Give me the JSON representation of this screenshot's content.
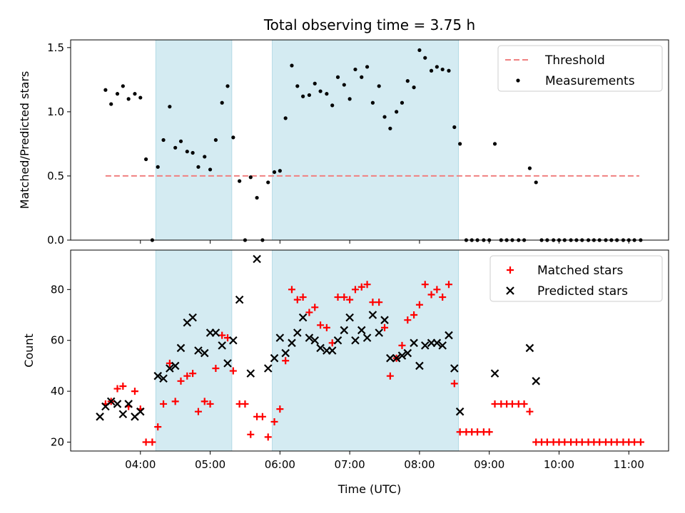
{
  "figure": {
    "title": "Total observing time = 3.75 h",
    "xlabel": "Time (UTC)",
    "x_tick_labels": [
      "04:00",
      "05:00",
      "06:00",
      "07:00",
      "08:00",
      "09:00",
      "10:00",
      "11:00"
    ],
    "x_tick_hours": [
      4,
      5,
      6,
      7,
      8,
      9,
      10,
      11
    ],
    "xlim": [
      3.0,
      11.57
    ],
    "shaded_intervals": [
      [
        4.22,
        5.31
      ],
      [
        5.89,
        8.56
      ]
    ],
    "shade_color": "#d4ebf2"
  },
  "chart_data": [
    {
      "type": "scatter",
      "ylabel": "Matched/Predicted stars",
      "ylim": [
        0,
        1.56
      ],
      "y_ticks": [
        0.0,
        0.5,
        1.0,
        1.5
      ],
      "y_tick_labels": [
        "0.0",
        "0.5",
        "1.0",
        "1.5"
      ],
      "legend": {
        "placement": "top-right",
        "entries": [
          "Threshold",
          "Measurements"
        ]
      },
      "threshold": {
        "name": "Threshold",
        "value": 0.5,
        "x_range": [
          3.5,
          11.15
        ],
        "color": "#f08080",
        "style": "dashed"
      },
      "series": [
        {
          "name": "Measurements",
          "marker": "dot",
          "color": "#000000",
          "x": [
            3.5,
            3.58,
            3.67,
            3.75,
            3.83,
            3.92,
            4.0,
            4.08,
            4.17,
            4.25,
            4.33,
            4.42,
            4.5,
            4.58,
            4.67,
            4.75,
            4.83,
            4.92,
            5.0,
            5.08,
            5.17,
            5.25,
            5.33,
            5.42,
            5.5,
            5.58,
            5.67,
            5.75,
            5.83,
            5.92,
            6.0,
            6.08,
            6.17,
            6.25,
            6.33,
            6.42,
            6.5,
            6.58,
            6.67,
            6.75,
            6.83,
            6.92,
            7.0,
            7.08,
            7.17,
            7.25,
            7.33,
            7.42,
            7.5,
            7.58,
            7.67,
            7.75,
            7.83,
            7.92,
            8.0,
            8.08,
            8.17,
            8.25,
            8.33,
            8.42,
            8.5,
            8.58,
            8.67,
            8.75,
            8.83,
            8.92,
            9.0,
            9.08,
            9.17,
            9.25,
            9.33,
            9.42,
            9.5,
            9.58,
            9.67,
            9.75,
            9.83,
            9.92,
            10.0,
            10.08,
            10.17,
            10.25,
            10.33,
            10.42,
            10.5,
            10.58,
            10.67,
            10.75,
            10.83,
            10.92,
            11.0,
            11.08,
            11.17
          ],
          "y": [
            1.17,
            1.06,
            1.14,
            1.2,
            1.1,
            1.14,
            1.11,
            0.63,
            0.0,
            0.57,
            0.78,
            1.04,
            0.72,
            0.77,
            0.69,
            0.68,
            0.57,
            0.65,
            0.55,
            0.78,
            1.07,
            1.2,
            0.8,
            0.46,
            0.0,
            0.49,
            0.33,
            0.0,
            0.45,
            0.53,
            0.54,
            0.95,
            1.36,
            1.2,
            1.12,
            1.13,
            1.22,
            1.16,
            1.14,
            1.05,
            1.27,
            1.21,
            1.1,
            1.33,
            1.27,
            1.35,
            1.07,
            1.2,
            0.96,
            0.87,
            1.0,
            1.07,
            1.24,
            1.19,
            1.48,
            1.42,
            1.32,
            1.35,
            1.33,
            1.32,
            0.88,
            0.75,
            0.0,
            0.0,
            0.0,
            0.0,
            0.0,
            0.75,
            0.0,
            0.0,
            0.0,
            0.0,
            0.0,
            0.56,
            0.45,
            0.0,
            0.0,
            0.0,
            0.0,
            0.0,
            0.0,
            0.0,
            0.0,
            0.0,
            0.0,
            0.0,
            0.0,
            0.0,
            0.0,
            0.0,
            0.0,
            0.0,
            0.0
          ]
        }
      ]
    },
    {
      "type": "scatter",
      "ylabel": "Count",
      "ylim": [
        16.5,
        95.5
      ],
      "y_ticks": [
        20,
        40,
        60,
        80
      ],
      "y_tick_labels": [
        "20",
        "40",
        "60",
        "80"
      ],
      "legend": {
        "placement": "top-right",
        "entries": [
          "Matched stars",
          "Predicted stars"
        ]
      },
      "series": [
        {
          "name": "Matched stars",
          "marker": "plus",
          "color": "#ff0000",
          "x": [
            3.5,
            3.58,
            3.67,
            3.75,
            3.83,
            3.92,
            4.0,
            4.08,
            4.17,
            4.25,
            4.33,
            4.42,
            4.5,
            4.58,
            4.67,
            4.75,
            4.83,
            4.92,
            5.0,
            5.08,
            5.17,
            5.25,
            5.33,
            5.42,
            5.5,
            5.58,
            5.67,
            5.75,
            5.83,
            5.92,
            6.0,
            6.08,
            6.17,
            6.25,
            6.33,
            6.42,
            6.5,
            6.58,
            6.67,
            6.75,
            6.83,
            6.92,
            7.0,
            7.08,
            7.17,
            7.25,
            7.33,
            7.42,
            7.5,
            7.58,
            7.67,
            7.75,
            7.83,
            7.92,
            8.0,
            8.08,
            8.17,
            8.25,
            8.33,
            8.42,
            8.5,
            8.58,
            8.67,
            8.75,
            8.83,
            8.92,
            9.0,
            9.08,
            9.17,
            9.25,
            9.33,
            9.42,
            9.5,
            9.58,
            9.67,
            9.75,
            9.83,
            9.92,
            10.0,
            10.08,
            10.17,
            10.25,
            10.33,
            10.42,
            10.5,
            10.58,
            10.67,
            10.75,
            10.83,
            10.92,
            11.0,
            11.08,
            11.17
          ],
          "y": [
            35,
            36,
            41,
            42,
            34,
            40,
            33,
            20,
            20,
            26,
            35,
            51,
            36,
            44,
            46,
            47,
            32,
            36,
            35,
            49,
            62,
            61,
            48,
            35,
            35,
            23,
            30,
            30,
            22,
            28,
            33,
            52,
            80,
            76,
            77,
            71,
            73,
            66,
            65,
            59,
            77,
            77,
            76,
            80,
            81,
            82,
            75,
            75,
            65,
            46,
            53,
            58,
            68,
            70,
            74,
            82,
            78,
            80,
            77,
            82,
            43,
            24,
            24,
            24,
            24,
            24,
            24,
            35,
            35,
            35,
            35,
            35,
            35,
            32,
            20,
            20,
            20,
            20,
            20,
            20,
            20,
            20,
            20,
            20,
            20,
            20,
            20,
            20,
            20,
            20,
            20,
            20,
            20
          ]
        },
        {
          "name": "Predicted stars",
          "marker": "x",
          "color": "#000000",
          "x": [
            3.42,
            3.5,
            3.58,
            3.67,
            3.75,
            3.83,
            3.92,
            4.0,
            4.25,
            4.33,
            4.42,
            4.5,
            4.58,
            4.67,
            4.75,
            4.83,
            4.92,
            5.0,
            5.08,
            5.17,
            5.25,
            5.33,
            5.42,
            5.58,
            5.67,
            5.83,
            5.92,
            6.0,
            6.08,
            6.17,
            6.25,
            6.33,
            6.42,
            6.5,
            6.58,
            6.67,
            6.75,
            6.83,
            6.92,
            7.0,
            7.08,
            7.17,
            7.25,
            7.33,
            7.42,
            7.5,
            7.58,
            7.67,
            7.75,
            7.83,
            7.92,
            8.0,
            8.08,
            8.17,
            8.25,
            8.33,
            8.42,
            8.5,
            8.58,
            9.08,
            9.58,
            9.67
          ],
          "y": [
            30,
            34,
            36,
            35,
            31,
            35,
            30,
            32,
            46,
            45,
            49,
            50,
            57,
            67,
            69,
            56,
            55,
            63,
            63,
            58,
            51,
            60,
            76,
            47,
            92,
            49,
            53,
            61,
            55,
            59,
            63,
            69,
            61,
            60,
            57,
            56,
            56,
            60,
            64,
            69,
            60,
            64,
            61,
            70,
            63,
            68,
            53,
            53,
            54,
            55,
            59,
            50,
            58,
            59,
            59,
            58,
            62,
            49,
            32,
            47,
            57,
            44
          ]
        }
      ]
    }
  ]
}
